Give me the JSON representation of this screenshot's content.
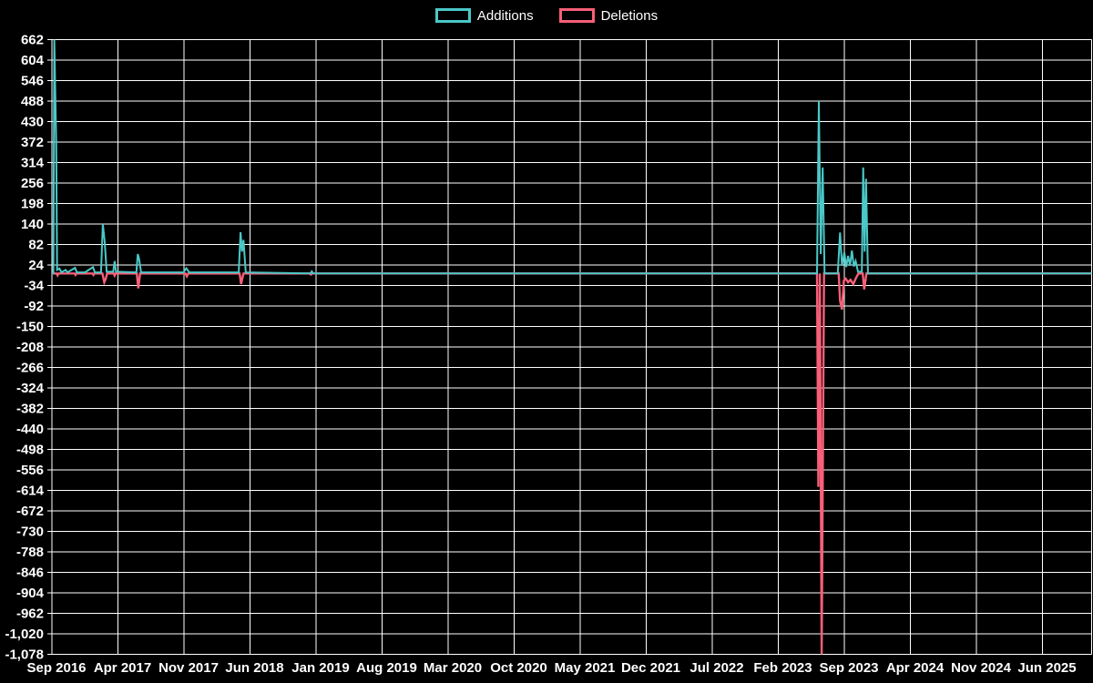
{
  "legend": {
    "additions_label": "Additions",
    "deletions_label": "Deletions"
  },
  "colors": {
    "background": "#000000",
    "grid": "#ffffff",
    "text": "#ffffff",
    "additions": "#4bc8c8",
    "deletions": "#f85f78"
  },
  "chart_data": {
    "type": "line",
    "title": "",
    "xlabel": "",
    "ylabel": "",
    "grid": true,
    "legend_position": "top-center",
    "x_axis": {
      "unit": "months since Sep 2016",
      "tick_interval_months": 7,
      "tick_labels": [
        "Sep 2016",
        "Apr 2017",
        "Nov 2017",
        "Jun 2018",
        "Jan 2019",
        "Aug 2019",
        "Mar 2020",
        "Oct 2020",
        "May 2021",
        "Dec 2021",
        "Jul 2022",
        "Feb 2023",
        "Sep 2023",
        "Apr 2024",
        "Nov 2024",
        "Jun 2025"
      ]
    },
    "y_axis": {
      "min": -1078,
      "max": 662,
      "tick_step": 58,
      "tick_labels": [
        "662",
        "604",
        "546",
        "488",
        "430",
        "372",
        "314",
        "256",
        "198",
        "140",
        "82",
        "24",
        "-34",
        "-92",
        "-150",
        "-208",
        "-266",
        "-324",
        "-382",
        "-440",
        "-498",
        "-556",
        "-614",
        "-672",
        "-730",
        "-788",
        "-846",
        "-904",
        "-962",
        "-1,020",
        "-1,078"
      ]
    },
    "series": [
      {
        "name": "Additions",
        "color": "#4bc8c8",
        "points": [
          [
            0,
            0
          ],
          [
            0.15,
            0
          ],
          [
            0.25,
            662
          ],
          [
            0.45,
            372
          ],
          [
            0.55,
            10
          ],
          [
            0.8,
            14
          ],
          [
            1.0,
            3
          ],
          [
            1.45,
            10
          ],
          [
            1.65,
            3
          ],
          [
            2.45,
            16
          ],
          [
            2.65,
            3
          ],
          [
            3.5,
            3
          ],
          [
            4.35,
            18
          ],
          [
            4.55,
            3
          ],
          [
            5.2,
            3
          ],
          [
            5.4,
            140
          ],
          [
            5.6,
            88
          ],
          [
            5.8,
            5
          ],
          [
            6.5,
            5
          ],
          [
            6.65,
            35
          ],
          [
            6.8,
            5
          ],
          [
            8.95,
            3
          ],
          [
            9.1,
            55
          ],
          [
            9.25,
            40
          ],
          [
            9.45,
            3
          ],
          [
            13.95,
            3
          ],
          [
            14.25,
            15
          ],
          [
            14.55,
            3
          ],
          [
            19.8,
            3
          ],
          [
            20.0,
            117
          ],
          [
            20.15,
            62
          ],
          [
            20.3,
            95
          ],
          [
            20.55,
            3
          ],
          [
            27.4,
            0
          ],
          [
            27.55,
            6
          ],
          [
            27.7,
            0
          ],
          [
            81.1,
            0
          ],
          [
            81.3,
            488
          ],
          [
            81.5,
            55
          ],
          [
            81.7,
            300
          ],
          [
            81.9,
            0
          ],
          [
            83.3,
            0
          ],
          [
            83.55,
            116
          ],
          [
            83.75,
            22
          ],
          [
            84.0,
            60
          ],
          [
            84.2,
            18
          ],
          [
            84.4,
            50
          ],
          [
            84.6,
            22
          ],
          [
            84.8,
            65
          ],
          [
            85.0,
            20
          ],
          [
            85.2,
            35
          ],
          [
            85.45,
            5
          ],
          [
            85.85,
            5
          ],
          [
            86.0,
            300
          ],
          [
            86.15,
            62
          ],
          [
            86.3,
            268
          ],
          [
            86.5,
            0
          ],
          [
            110.2,
            0
          ]
        ]
      },
      {
        "name": "Deletions",
        "color": "#f85f78",
        "points": [
          [
            0,
            0
          ],
          [
            0.5,
            0
          ],
          [
            0.6,
            -5
          ],
          [
            0.7,
            0
          ],
          [
            2.4,
            0
          ],
          [
            2.5,
            -4
          ],
          [
            2.6,
            0
          ],
          [
            4.3,
            0
          ],
          [
            4.4,
            -4
          ],
          [
            4.5,
            0
          ],
          [
            5.35,
            0
          ],
          [
            5.55,
            -25
          ],
          [
            5.7,
            -16
          ],
          [
            5.85,
            0
          ],
          [
            6.55,
            0
          ],
          [
            6.65,
            -6
          ],
          [
            6.75,
            0
          ],
          [
            9.0,
            0
          ],
          [
            9.15,
            -42
          ],
          [
            9.35,
            0
          ],
          [
            14.15,
            0
          ],
          [
            14.3,
            -8
          ],
          [
            14.45,
            0
          ],
          [
            19.9,
            0
          ],
          [
            20.05,
            -30
          ],
          [
            20.3,
            0
          ],
          [
            27.3,
            0
          ],
          [
            27.45,
            -3
          ],
          [
            27.6,
            0
          ],
          [
            81.1,
            0
          ],
          [
            81.25,
            -604
          ],
          [
            81.4,
            0
          ],
          [
            81.6,
            -1078
          ],
          [
            81.85,
            0
          ],
          [
            83.4,
            0
          ],
          [
            83.55,
            -77
          ],
          [
            83.75,
            -102
          ],
          [
            83.95,
            -20
          ],
          [
            84.15,
            -15
          ],
          [
            84.4,
            -25
          ],
          [
            84.65,
            -18
          ],
          [
            84.95,
            -30
          ],
          [
            85.25,
            -12
          ],
          [
            85.5,
            0
          ],
          [
            85.95,
            0
          ],
          [
            86.1,
            -45
          ],
          [
            86.35,
            0
          ],
          [
            110.2,
            0
          ]
        ]
      }
    ]
  }
}
